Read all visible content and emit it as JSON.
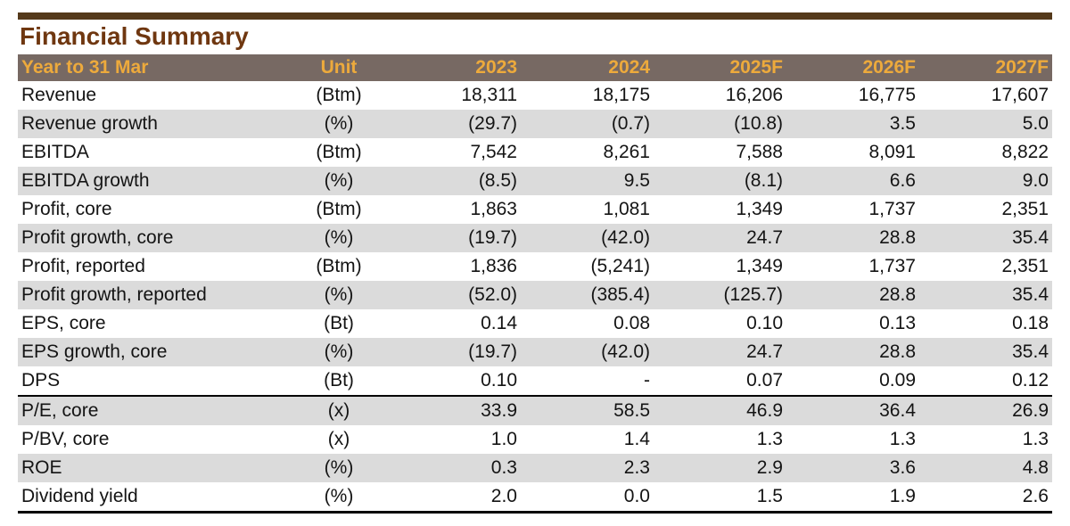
{
  "title": "Financial Summary",
  "colors": {
    "bar_brown": "#54391B",
    "title_brown": "#6F3710",
    "header_bg": "#776963",
    "header_gold": "#EDAA3C",
    "row_alt": "#DBDBDB",
    "text_dark": "#141414"
  },
  "table": {
    "headers": [
      "Year to 31 Mar",
      "Unit",
      "2023",
      "2024",
      "2025F",
      "2026F",
      "2027F"
    ],
    "divider_before_row_index": 11,
    "rows": [
      {
        "label": "Revenue",
        "unit": "(Btm)",
        "values": [
          "18,311",
          "18,175",
          "16,206",
          "16,775",
          "17,607"
        ]
      },
      {
        "label": "Revenue growth",
        "unit": "(%)",
        "values": [
          "(29.7)",
          "(0.7)",
          "(10.8)",
          "3.5",
          "5.0"
        ]
      },
      {
        "label": "EBITDA",
        "unit": "(Btm)",
        "values": [
          "7,542",
          "8,261",
          "7,588",
          "8,091",
          "8,822"
        ]
      },
      {
        "label": "EBITDA growth",
        "unit": "(%)",
        "values": [
          "(8.5)",
          "9.5",
          "(8.1)",
          "6.6",
          "9.0"
        ]
      },
      {
        "label": "Profit, core",
        "unit": "(Btm)",
        "values": [
          "1,863",
          "1,081",
          "1,349",
          "1,737",
          "2,351"
        ]
      },
      {
        "label": "Profit growth, core",
        "unit": "(%)",
        "values": [
          "(19.7)",
          "(42.0)",
          "24.7",
          "28.8",
          "35.4"
        ]
      },
      {
        "label": "Profit, reported",
        "unit": "(Btm)",
        "values": [
          "1,836",
          "(5,241)",
          "1,349",
          "1,737",
          "2,351"
        ]
      },
      {
        "label": "Profit growth, reported",
        "unit": "(%)",
        "values": [
          "(52.0)",
          "(385.4)",
          "(125.7)",
          "28.8",
          "35.4"
        ]
      },
      {
        "label": "EPS, core",
        "unit": "(Bt)",
        "values": [
          "0.14",
          "0.08",
          "0.10",
          "0.13",
          "0.18"
        ]
      },
      {
        "label": "EPS growth, core",
        "unit": "(%)",
        "values": [
          "(19.7)",
          "(42.0)",
          "24.7",
          "28.8",
          "35.4"
        ]
      },
      {
        "label": "DPS",
        "unit": "(Bt)",
        "values": [
          "0.10",
          "-",
          "0.07",
          "0.09",
          "0.12"
        ]
      },
      {
        "label": "P/E, core",
        "unit": "(x)",
        "values": [
          "33.9",
          "58.5",
          "46.9",
          "36.4",
          "26.9"
        ]
      },
      {
        "label": "P/BV, core",
        "unit": "(x)",
        "values": [
          "1.0",
          "1.4",
          "1.3",
          "1.3",
          "1.3"
        ]
      },
      {
        "label": "ROE",
        "unit": "(%)",
        "values": [
          "0.3",
          "2.3",
          "2.9",
          "3.6",
          "4.8"
        ]
      },
      {
        "label": "Dividend yield",
        "unit": "(%)",
        "values": [
          "2.0",
          "0.0",
          "1.5",
          "1.9",
          "2.6"
        ]
      }
    ]
  }
}
